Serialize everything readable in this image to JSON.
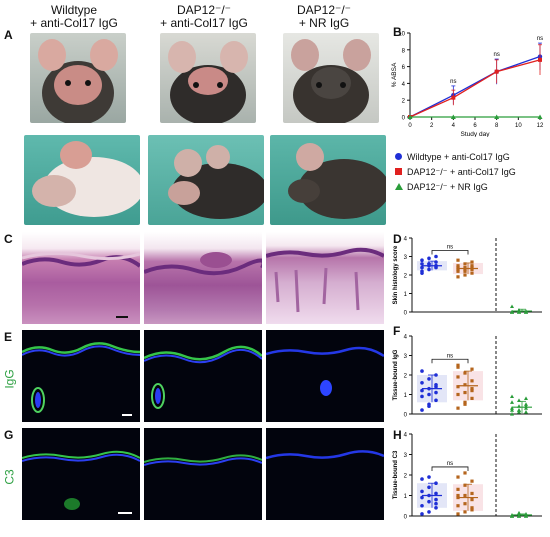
{
  "columns": [
    {
      "line1": "Wildtype",
      "line2": "+ anti-Col17 IgG"
    },
    {
      "line1": "DAP12⁻/⁻",
      "line2": "+ anti-Col17 IgG"
    },
    {
      "line1": "DAP12⁻/⁻",
      "line2": "+ NR IgG"
    }
  ],
  "panel_letters": {
    "A": "A",
    "B": "B",
    "C": "C",
    "D": "D",
    "E": "E",
    "F": "F",
    "G": "G",
    "H": "H"
  },
  "row_labels": {
    "igg": "IgG",
    "c3": "C3"
  },
  "colors": {
    "wildtype": "#1f2fd6",
    "dap12_col17": "#e0201f",
    "dap12_nr": "#2a9d3a",
    "fluor_green": "#2ea043"
  },
  "chart_B": {
    "type": "line",
    "ylabel": "% ABSA",
    "xlabel": "Study day",
    "x": [
      0,
      4,
      8,
      12
    ],
    "xticks": [
      "0",
      "2",
      "4",
      "6",
      "8",
      "10",
      "12"
    ],
    "yticks": [
      "0",
      "2",
      "4",
      "6",
      "8",
      "10"
    ],
    "ylim": [
      0,
      10
    ],
    "xlim": [
      0,
      12
    ],
    "annotations": [
      "ns",
      "ns",
      "ns"
    ],
    "series": [
      {
        "name": "Wildtype + anti-Col17 IgG",
        "values": [
          0,
          2.6,
          5.4,
          7.2
        ],
        "err": [
          0,
          1.1,
          1.5,
          1.6
        ]
      },
      {
        "name": "DAP12⁻/⁻ + anti-Col17 IgG",
        "values": [
          0,
          2.3,
          5.4,
          6.8
        ],
        "err": [
          0,
          0.9,
          1.4,
          1.8
        ]
      },
      {
        "name": "DAP12⁻/⁻ + NR IgG",
        "values": [
          0,
          0,
          0,
          0
        ],
        "err": [
          0,
          0,
          0,
          0
        ]
      }
    ]
  },
  "chart_D": {
    "type": "scatter",
    "ylabel": "Skin histology score",
    "yticks": [
      "0",
      "1",
      "2",
      "3",
      "4"
    ],
    "ylim": [
      0,
      4
    ],
    "annotation": "ns",
    "groups": [
      {
        "mean": 2.5,
        "sd": 0.25,
        "values": [
          2.1,
          2.3,
          2.4,
          2.4,
          2.5,
          2.5,
          2.6,
          2.6,
          2.7,
          2.8,
          2.9,
          3.0,
          2.2,
          2.6,
          2.5
        ]
      },
      {
        "mean": 2.35,
        "sd": 0.3,
        "values": [
          1.9,
          2.0,
          2.1,
          2.2,
          2.3,
          2.3,
          2.4,
          2.4,
          2.5,
          2.5,
          2.6,
          2.7,
          2.8,
          2.2,
          2.4,
          2.3
        ]
      },
      {
        "mean": 0.05,
        "sd": 0.1,
        "values": [
          0,
          0,
          0,
          0,
          0,
          0.05,
          0,
          0.1,
          0,
          0,
          0.05,
          0,
          0.3,
          0,
          0
        ]
      }
    ]
  },
  "chart_F": {
    "type": "scatter",
    "ylabel": "Tissue-bound IgG",
    "yticks": [
      "0",
      "1",
      "2",
      "3",
      "4"
    ],
    "ylim": [
      0,
      4
    ],
    "annotation": "ns",
    "groups": [
      {
        "mean": 1.3,
        "sd": 0.7,
        "values": [
          0.2,
          0.5,
          0.7,
          0.9,
          1.0,
          1.1,
          1.2,
          1.3,
          1.4,
          1.6,
          1.8,
          2.0,
          2.2,
          0.4,
          1.5
        ]
      },
      {
        "mean": 1.45,
        "sd": 0.75,
        "values": [
          0.3,
          0.6,
          0.8,
          1.0,
          1.1,
          1.3,
          1.4,
          1.5,
          1.7,
          1.9,
          2.1,
          2.3,
          2.4,
          0.5,
          1.2,
          2.5
        ]
      },
      {
        "mean": 0.35,
        "sd": 0.3,
        "values": [
          0,
          0.1,
          0.1,
          0.2,
          0.2,
          0.3,
          0.3,
          0.4,
          0.5,
          0.6,
          0.7,
          0.8,
          0.9,
          0.2,
          0.4
        ]
      }
    ]
  },
  "chart_H": {
    "type": "scatter",
    "ylabel": "Tissue-bound C3",
    "yticks": [
      "0",
      "1",
      "2",
      "3",
      "4"
    ],
    "ylim": [
      0,
      4
    ],
    "annotation": "ns",
    "groups": [
      {
        "mean": 1.0,
        "sd": 0.6,
        "values": [
          0.1,
          0.2,
          0.4,
          0.5,
          0.7,
          0.8,
          0.9,
          1.0,
          1.1,
          1.2,
          1.4,
          1.6,
          1.8,
          1.9,
          0.6
        ]
      },
      {
        "mean": 0.9,
        "sd": 0.65,
        "values": [
          0.1,
          0.2,
          0.3,
          0.5,
          0.6,
          0.8,
          0.9,
          1.0,
          1.1,
          1.3,
          1.5,
          1.7,
          1.9,
          2.1,
          0.4,
          1.0
        ]
      },
      {
        "mean": 0.05,
        "sd": 0.05,
        "values": [
          0,
          0,
          0,
          0,
          0,
          0,
          0.05,
          0,
          0.1,
          0,
          0,
          0.05,
          0,
          0.15,
          0
        ]
      }
    ]
  }
}
